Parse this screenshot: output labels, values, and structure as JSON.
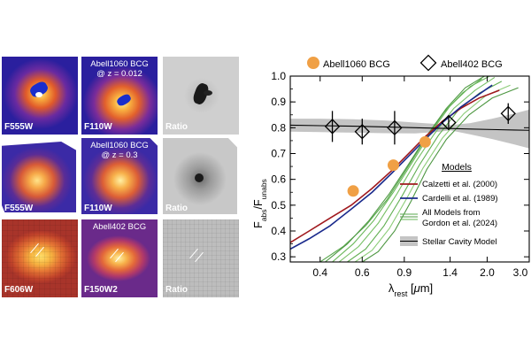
{
  "panels": [
    {
      "filter": "F555W",
      "title": [],
      "kind": "color"
    },
    {
      "filter": "F110W",
      "title": [
        "Abell1060 BCG",
        "@ z = 0.012"
      ],
      "kind": "color"
    },
    {
      "filter": "Ratio",
      "title": [],
      "kind": "gray"
    },
    {
      "filter": "F555W",
      "title": [],
      "kind": "color"
    },
    {
      "filter": "F110W",
      "title": [
        "Abell1060 BCG",
        "@ z = 0.3"
      ],
      "kind": "color"
    },
    {
      "filter": "Ratio",
      "title": [],
      "kind": "gray"
    },
    {
      "filter": "F606W",
      "title": [],
      "kind": "color"
    },
    {
      "filter": "F150W2",
      "title": [
        "Abell402 BCG"
      ],
      "kind": "color"
    },
    {
      "filter": "Ratio",
      "title": [],
      "kind": "gray"
    }
  ],
  "chart_data": {
    "type": "line",
    "xlabel": "λrest [μm]",
    "ylabel": "Fabs/Funabs",
    "xscale": "log",
    "xlim": [
      0.3,
      3.0
    ],
    "ylim": [
      0.28,
      1.0
    ],
    "x_ticks": [
      0.4,
      0.6,
      0.9,
      1.4,
      2.0,
      3.0
    ],
    "x_tick_labels": [
      "0.4",
      "0.6",
      "0.9",
      "1.4",
      "2.0",
      "3.0"
    ],
    "y_ticks": [
      0.3,
      0.4,
      0.5,
      0.6,
      0.7,
      0.8,
      0.9,
      1.0
    ],
    "y_tick_labels": [
      "0.3",
      "0.4",
      "0.5",
      "0.6",
      "0.7",
      "0.8",
      "0.9",
      "1.0"
    ],
    "top_legend": [
      {
        "label": "Abell1060 BCG",
        "marker": "circle",
        "color": "#f0a045"
      },
      {
        "label": "Abell402 BCG",
        "marker": "diamond",
        "color": "#000000"
      }
    ],
    "legend_title": "Models",
    "legend": [
      {
        "label": "Calzetti et al. (2000)",
        "color": "#a0191e",
        "style": "line"
      },
      {
        "label": "Cardelli et al. (1989)",
        "color": "#1a2a8c",
        "style": "line"
      },
      {
        "label": "All Models from",
        "label2": "Gordon et al. (2024)",
        "color": "#5aa84e",
        "style": "multiline"
      },
      {
        "label": "Stellar Cavity Model",
        "color": "#000000",
        "style": "band"
      }
    ],
    "abell1060_points": [
      {
        "x": 0.55,
        "y": 0.555
      },
      {
        "x": 0.81,
        "y": 0.655
      },
      {
        "x": 1.1,
        "y": 0.745
      }
    ],
    "abell402_points": [
      {
        "x": 0.45,
        "y": 0.805,
        "err": 0.06
      },
      {
        "x": 0.6,
        "y": 0.785,
        "err": 0.05
      },
      {
        "x": 0.82,
        "y": 0.8,
        "err": 0.065
      },
      {
        "x": 1.38,
        "y": 0.82,
        "err": 0.025
      },
      {
        "x": 2.45,
        "y": 0.855,
        "err": 0.04
      }
    ],
    "calzetti": {
      "x": [
        0.3,
        0.36,
        0.44,
        0.54,
        0.66,
        0.8,
        0.95,
        1.1,
        1.3,
        1.55,
        1.85,
        2.25
      ],
      "y": [
        0.355,
        0.4,
        0.45,
        0.5,
        0.565,
        0.635,
        0.705,
        0.765,
        0.825,
        0.875,
        0.915,
        0.945
      ]
    },
    "cardelli": {
      "x": [
        0.3,
        0.36,
        0.44,
        0.54,
        0.66,
        0.8,
        0.95,
        1.1,
        1.3,
        1.55,
        1.85,
        2.1
      ],
      "y": [
        0.33,
        0.37,
        0.42,
        0.485,
        0.55,
        0.625,
        0.695,
        0.755,
        0.82,
        0.88,
        0.93,
        0.965
      ]
    },
    "gordon": [
      {
        "x": [
          0.4,
          0.5,
          0.62,
          0.76,
          0.92,
          1.1,
          1.32,
          1.58,
          1.9
        ],
        "y": [
          0.28,
          0.34,
          0.42,
          0.52,
          0.64,
          0.755,
          0.86,
          0.935,
          0.99
        ]
      },
      {
        "x": [
          0.42,
          0.52,
          0.64,
          0.78,
          0.94,
          1.12,
          1.35,
          1.62,
          1.95
        ],
        "y": [
          0.28,
          0.35,
          0.44,
          0.545,
          0.66,
          0.77,
          0.875,
          0.955,
          1.0
        ]
      },
      {
        "x": [
          0.45,
          0.55,
          0.67,
          0.81,
          0.97,
          1.16,
          1.4,
          1.7,
          2.05
        ],
        "y": [
          0.28,
          0.35,
          0.44,
          0.55,
          0.665,
          0.78,
          0.885,
          0.96,
          1.0
        ]
      },
      {
        "x": [
          0.48,
          0.58,
          0.7,
          0.84,
          1.0,
          1.2,
          1.45,
          1.78,
          2.15
        ],
        "y": [
          0.28,
          0.34,
          0.43,
          0.545,
          0.665,
          0.775,
          0.875,
          0.945,
          0.995
        ]
      },
      {
        "x": [
          0.52,
          0.62,
          0.74,
          0.88,
          1.04,
          1.25,
          1.52,
          1.86,
          2.3
        ],
        "y": [
          0.28,
          0.33,
          0.42,
          0.535,
          0.655,
          0.77,
          0.87,
          0.935,
          0.98
        ]
      },
      {
        "x": [
          0.56,
          0.66,
          0.78,
          0.92,
          1.08,
          1.3,
          1.6,
          1.98,
          2.5
        ],
        "y": [
          0.28,
          0.325,
          0.41,
          0.525,
          0.645,
          0.76,
          0.855,
          0.925,
          0.965
        ]
      },
      {
        "x": [
          0.6,
          0.7,
          0.82,
          0.96,
          1.12,
          1.35,
          1.68,
          2.1,
          2.7
        ],
        "y": [
          0.28,
          0.32,
          0.4,
          0.515,
          0.64,
          0.755,
          0.85,
          0.915,
          0.955
        ]
      }
    ],
    "cavity": {
      "x": [
        0.3,
        0.4,
        0.55,
        0.75,
        1.0,
        1.25,
        1.4,
        1.7,
        2.1,
        2.6,
        3.0
      ],
      "y": [
        0.81,
        0.808,
        0.806,
        0.803,
        0.8,
        0.798,
        0.797,
        0.795,
        0.793,
        0.791,
        0.79
      ],
      "upper": [
        0.835,
        0.835,
        0.833,
        0.828,
        0.82,
        0.814,
        0.81,
        0.818,
        0.835,
        0.855,
        0.87
      ],
      "lower": [
        0.785,
        0.783,
        0.781,
        0.779,
        0.778,
        0.784,
        0.79,
        0.774,
        0.756,
        0.735,
        0.72
      ]
    }
  }
}
